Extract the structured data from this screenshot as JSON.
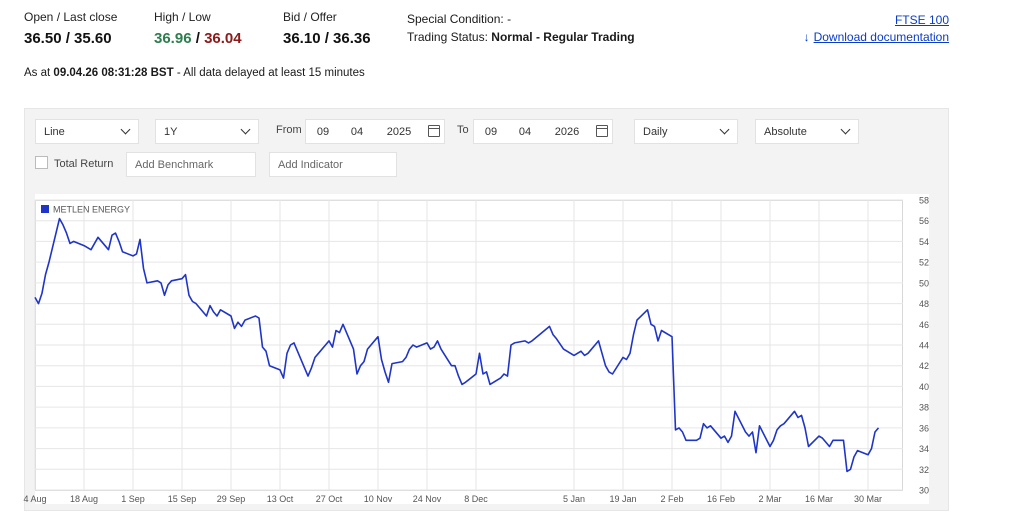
{
  "quote": {
    "open_close_label": "Open / Last close",
    "open_close_value": "36.50 / 35.60",
    "high_low_label": "High / Low",
    "high_value": "36.96",
    "high_low_sep": " / ",
    "low_value": "36.04",
    "bid_offer_label": "Bid / Offer",
    "bid_offer_value": "36.10 / 36.36",
    "special_condition_label": "Special Condition:",
    "special_condition_value": "-",
    "trading_status_label": "Trading Status:",
    "trading_status_value": "Normal - Regular Trading"
  },
  "links": {
    "index": "FTSE 100",
    "download": "Download documentation",
    "download_icon": "download-arrow-icon"
  },
  "as_at": {
    "prefix": "As at",
    "timestamp": "09.04.26 08:31:28 BST",
    "suffix": "- All data delayed at least 15 minutes"
  },
  "controls": {
    "chart_type": "Line",
    "period": "1Y",
    "from_label": "From",
    "from_day": "09",
    "from_month": "04",
    "from_year": "2025",
    "to_label": "To",
    "to_day": "09",
    "to_month": "04",
    "to_year": "2026",
    "interval": "Daily",
    "scale": "Absolute",
    "total_return_label": "Total Return",
    "benchmark_placeholder": "Add Benchmark",
    "indicator_placeholder": "Add Indicator"
  },
  "colors": {
    "line": "#1f35c8",
    "high": "#2e7d4f",
    "low": "#8b1a1a",
    "link": "#0a3cc8"
  },
  "chart_data": {
    "type": "line",
    "legend": "top-left",
    "grid": true,
    "ylim": [
      30,
      58
    ],
    "y_ticks": [
      "58",
      "56",
      "54",
      "52",
      "50",
      "48",
      "46",
      "44",
      "42",
      "40",
      "38",
      "36",
      "34",
      "32",
      "30"
    ],
    "x_ticks": [
      {
        "label": "4 Aug",
        "date": "2025-08-04"
      },
      {
        "label": "18 Aug",
        "date": "2025-08-18"
      },
      {
        "label": "1 Sep",
        "date": "2025-09-01"
      },
      {
        "label": "15 Sep",
        "date": "2025-09-15"
      },
      {
        "label": "29 Sep",
        "date": "2025-09-29"
      },
      {
        "label": "13 Oct",
        "date": "2025-10-13"
      },
      {
        "label": "27 Oct",
        "date": "2025-10-27"
      },
      {
        "label": "10 Nov",
        "date": "2025-11-10"
      },
      {
        "label": "24 Nov",
        "date": "2025-11-24"
      },
      {
        "label": "8 Dec",
        "date": "2025-12-08"
      },
      {
        "label": "5 Jan",
        "date": "2026-01-05"
      },
      {
        "label": "19 Jan",
        "date": "2026-01-19"
      },
      {
        "label": "2 Feb",
        "date": "2026-02-02"
      },
      {
        "label": "16 Feb",
        "date": "2026-02-16"
      },
      {
        "label": "2 Mar",
        "date": "2026-03-02"
      },
      {
        "label": "16 Mar",
        "date": "2026-03-16"
      },
      {
        "label": "30 Mar",
        "date": "2026-03-30"
      }
    ],
    "x_range": [
      "2025-08-04",
      "2026-04-09"
    ],
    "series": [
      {
        "name": "METLEN ENERGY",
        "points": [
          [
            "2025-08-04",
            48.6
          ],
          [
            "2025-08-05",
            48.0
          ],
          [
            "2025-08-06",
            49.0
          ],
          [
            "2025-08-07",
            50.8
          ],
          [
            "2025-08-08",
            52.0
          ],
          [
            "2025-08-11",
            56.2
          ],
          [
            "2025-08-12",
            55.6
          ],
          [
            "2025-08-13",
            54.8
          ],
          [
            "2025-08-14",
            53.8
          ],
          [
            "2025-08-15",
            54.0
          ],
          [
            "2025-08-18",
            53.6
          ],
          [
            "2025-08-20",
            53.2
          ],
          [
            "2025-08-22",
            54.4
          ],
          [
            "2025-08-25",
            53.2
          ],
          [
            "2025-08-26",
            54.6
          ],
          [
            "2025-08-27",
            54.8
          ],
          [
            "2025-08-28",
            54.0
          ],
          [
            "2025-08-29",
            53.0
          ],
          [
            "2025-09-01",
            52.6
          ],
          [
            "2025-09-02",
            52.8
          ],
          [
            "2025-09-03",
            54.2
          ],
          [
            "2025-09-04",
            51.4
          ],
          [
            "2025-09-05",
            50.0
          ],
          [
            "2025-09-08",
            50.2
          ],
          [
            "2025-09-09",
            50.0
          ],
          [
            "2025-09-10",
            48.8
          ],
          [
            "2025-09-11",
            49.8
          ],
          [
            "2025-09-12",
            50.2
          ],
          [
            "2025-09-15",
            50.4
          ],
          [
            "2025-09-16",
            50.8
          ],
          [
            "2025-09-17",
            48.8
          ],
          [
            "2025-09-18",
            48.2
          ],
          [
            "2025-09-19",
            48.0
          ],
          [
            "2025-09-22",
            46.8
          ],
          [
            "2025-09-23",
            47.8
          ],
          [
            "2025-09-24",
            47.2
          ],
          [
            "2025-09-25",
            46.8
          ],
          [
            "2025-09-26",
            47.4
          ],
          [
            "2025-09-29",
            46.8
          ],
          [
            "2025-09-30",
            45.6
          ],
          [
            "2025-10-01",
            46.2
          ],
          [
            "2025-10-02",
            45.8
          ],
          [
            "2025-10-03",
            46.4
          ],
          [
            "2025-10-06",
            46.8
          ],
          [
            "2025-10-07",
            46.6
          ],
          [
            "2025-10-08",
            43.8
          ],
          [
            "2025-10-09",
            43.4
          ],
          [
            "2025-10-10",
            42.0
          ],
          [
            "2025-10-13",
            41.6
          ],
          [
            "2025-10-14",
            40.8
          ],
          [
            "2025-10-15",
            43.2
          ],
          [
            "2025-10-16",
            44.0
          ],
          [
            "2025-10-17",
            44.2
          ],
          [
            "2025-10-20",
            41.8
          ],
          [
            "2025-10-21",
            41.0
          ],
          [
            "2025-10-22",
            41.8
          ],
          [
            "2025-10-23",
            42.8
          ],
          [
            "2025-10-24",
            43.2
          ],
          [
            "2025-10-27",
            44.4
          ],
          [
            "2025-10-28",
            43.8
          ],
          [
            "2025-10-29",
            45.4
          ],
          [
            "2025-10-30",
            45.2
          ],
          [
            "2025-10-31",
            46.0
          ],
          [
            "2025-11-03",
            43.6
          ],
          [
            "2025-11-04",
            41.2
          ],
          [
            "2025-11-05",
            42.0
          ],
          [
            "2025-11-06",
            42.4
          ],
          [
            "2025-11-07",
            43.6
          ],
          [
            "2025-11-10",
            44.8
          ],
          [
            "2025-11-11",
            42.6
          ],
          [
            "2025-11-12",
            41.4
          ],
          [
            "2025-11-13",
            40.4
          ],
          [
            "2025-11-14",
            42.2
          ],
          [
            "2025-11-17",
            42.4
          ],
          [
            "2025-11-18",
            42.8
          ],
          [
            "2025-11-19",
            43.6
          ],
          [
            "2025-11-20",
            44.0
          ],
          [
            "2025-11-21",
            43.8
          ],
          [
            "2025-11-24",
            44.2
          ],
          [
            "2025-11-25",
            43.6
          ],
          [
            "2025-11-26",
            43.8
          ],
          [
            "2025-11-27",
            44.4
          ],
          [
            "2025-11-28",
            43.6
          ],
          [
            "2025-12-01",
            42.0
          ],
          [
            "2025-12-02",
            42.0
          ],
          [
            "2025-12-03",
            41.0
          ],
          [
            "2025-12-04",
            40.2
          ],
          [
            "2025-12-05",
            40.4
          ],
          [
            "2025-12-08",
            41.2
          ],
          [
            "2025-12-09",
            43.2
          ],
          [
            "2025-12-10",
            41.2
          ],
          [
            "2025-12-11",
            41.4
          ],
          [
            "2025-12-12",
            40.2
          ],
          [
            "2025-12-15",
            40.8
          ],
          [
            "2025-12-16",
            41.2
          ],
          [
            "2025-12-17",
            41.0
          ],
          [
            "2025-12-18",
            44.0
          ],
          [
            "2025-12-19",
            44.2
          ],
          [
            "2025-12-22",
            44.4
          ],
          [
            "2025-12-23",
            44.2
          ],
          [
            "2025-12-24",
            44.4
          ],
          [
            "2025-12-29",
            45.8
          ],
          [
            "2025-12-30",
            45.0
          ],
          [
            "2025-12-31",
            44.6
          ],
          [
            "2026-01-02",
            43.6
          ],
          [
            "2026-01-05",
            43.0
          ],
          [
            "2026-01-06",
            43.2
          ],
          [
            "2026-01-07",
            43.4
          ],
          [
            "2026-01-08",
            43.0
          ],
          [
            "2026-01-09",
            43.2
          ],
          [
            "2026-01-12",
            44.4
          ],
          [
            "2026-01-13",
            43.2
          ],
          [
            "2026-01-14",
            42.0
          ],
          [
            "2026-01-15",
            41.4
          ],
          [
            "2026-01-16",
            41.2
          ],
          [
            "2026-01-19",
            42.8
          ],
          [
            "2026-01-20",
            42.6
          ],
          [
            "2026-01-21",
            43.2
          ],
          [
            "2026-01-22",
            45.0
          ],
          [
            "2026-01-23",
            46.4
          ],
          [
            "2026-01-26",
            47.4
          ],
          [
            "2026-01-27",
            46.0
          ],
          [
            "2026-01-28",
            45.8
          ],
          [
            "2026-01-29",
            44.4
          ],
          [
            "2026-01-30",
            45.4
          ],
          [
            "2026-02-02",
            44.8
          ],
          [
            "2026-02-03",
            35.8
          ],
          [
            "2026-02-04",
            36.0
          ],
          [
            "2026-02-05",
            35.6
          ],
          [
            "2026-02-06",
            34.8
          ],
          [
            "2026-02-09",
            34.8
          ],
          [
            "2026-02-10",
            35.0
          ],
          [
            "2026-02-11",
            36.4
          ],
          [
            "2026-02-12",
            36.0
          ],
          [
            "2026-02-13",
            36.2
          ],
          [
            "2026-02-16",
            35.0
          ],
          [
            "2026-02-17",
            35.2
          ],
          [
            "2026-02-18",
            34.6
          ],
          [
            "2026-02-19",
            35.2
          ],
          [
            "2026-02-20",
            37.6
          ],
          [
            "2026-02-23",
            35.6
          ],
          [
            "2026-02-24",
            35.2
          ],
          [
            "2026-02-25",
            35.6
          ],
          [
            "2026-02-26",
            33.6
          ],
          [
            "2026-02-27",
            36.2
          ],
          [
            "2026-03-02",
            34.2
          ],
          [
            "2026-03-03",
            34.8
          ],
          [
            "2026-03-04",
            35.8
          ],
          [
            "2026-03-05",
            36.2
          ],
          [
            "2026-03-06",
            36.4
          ],
          [
            "2026-03-09",
            37.6
          ],
          [
            "2026-03-10",
            37.0
          ],
          [
            "2026-03-11",
            37.2
          ],
          [
            "2026-03-12",
            36.0
          ],
          [
            "2026-03-13",
            34.2
          ],
          [
            "2026-03-16",
            35.2
          ],
          [
            "2026-03-17",
            35.0
          ],
          [
            "2026-03-18",
            34.6
          ],
          [
            "2026-03-19",
            34.2
          ],
          [
            "2026-03-20",
            34.8
          ],
          [
            "2026-03-23",
            34.8
          ],
          [
            "2026-03-24",
            31.8
          ],
          [
            "2026-03-25",
            32.0
          ],
          [
            "2026-03-26",
            33.2
          ],
          [
            "2026-03-27",
            33.8
          ],
          [
            "2026-03-30",
            33.4
          ],
          [
            "2026-03-31",
            34.0
          ],
          [
            "2026-04-01",
            35.6
          ],
          [
            "2026-04-02",
            36.0
          ]
        ]
      }
    ]
  }
}
